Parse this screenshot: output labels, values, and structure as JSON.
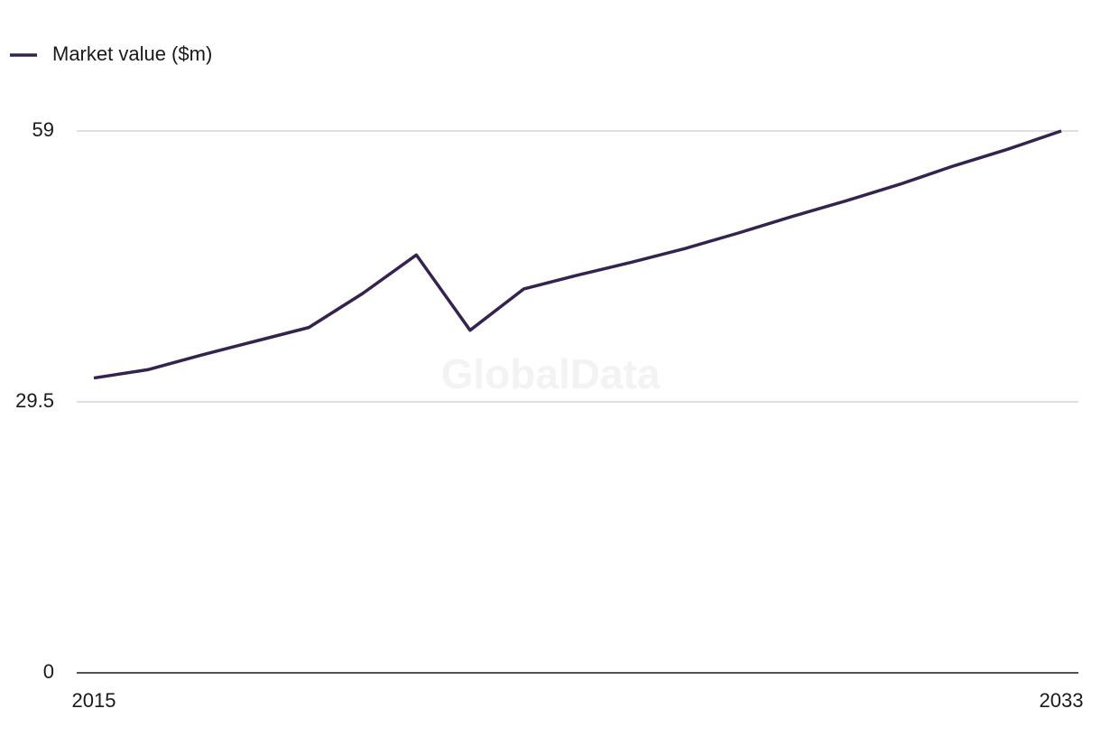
{
  "chart_data": {
    "type": "line",
    "legend_label": "Market value ($m)",
    "watermark": "GlobalData",
    "x": [
      2015,
      2016,
      2017,
      2018,
      2019,
      2020,
      2021,
      2022,
      2023,
      2024,
      2025,
      2026,
      2027,
      2028,
      2029,
      2030,
      2031,
      2032,
      2033
    ],
    "series": [
      {
        "name": "Market value ($m)",
        "color": "#35234f",
        "values": [
          32.1,
          33.0,
          34.6,
          36.1,
          37.6,
          41.3,
          45.5,
          37.3,
          41.8,
          43.3,
          44.7,
          46.2,
          47.9,
          49.7,
          51.4,
          53.2,
          55.2,
          57.0,
          59.0
        ]
      }
    ],
    "xlim": [
      2015,
      2033
    ],
    "xticks": [
      2015,
      2033
    ],
    "ylim": [
      0,
      59
    ],
    "yticks": [
      0,
      29.5,
      59
    ],
    "grid": true,
    "legend": "top-left"
  }
}
